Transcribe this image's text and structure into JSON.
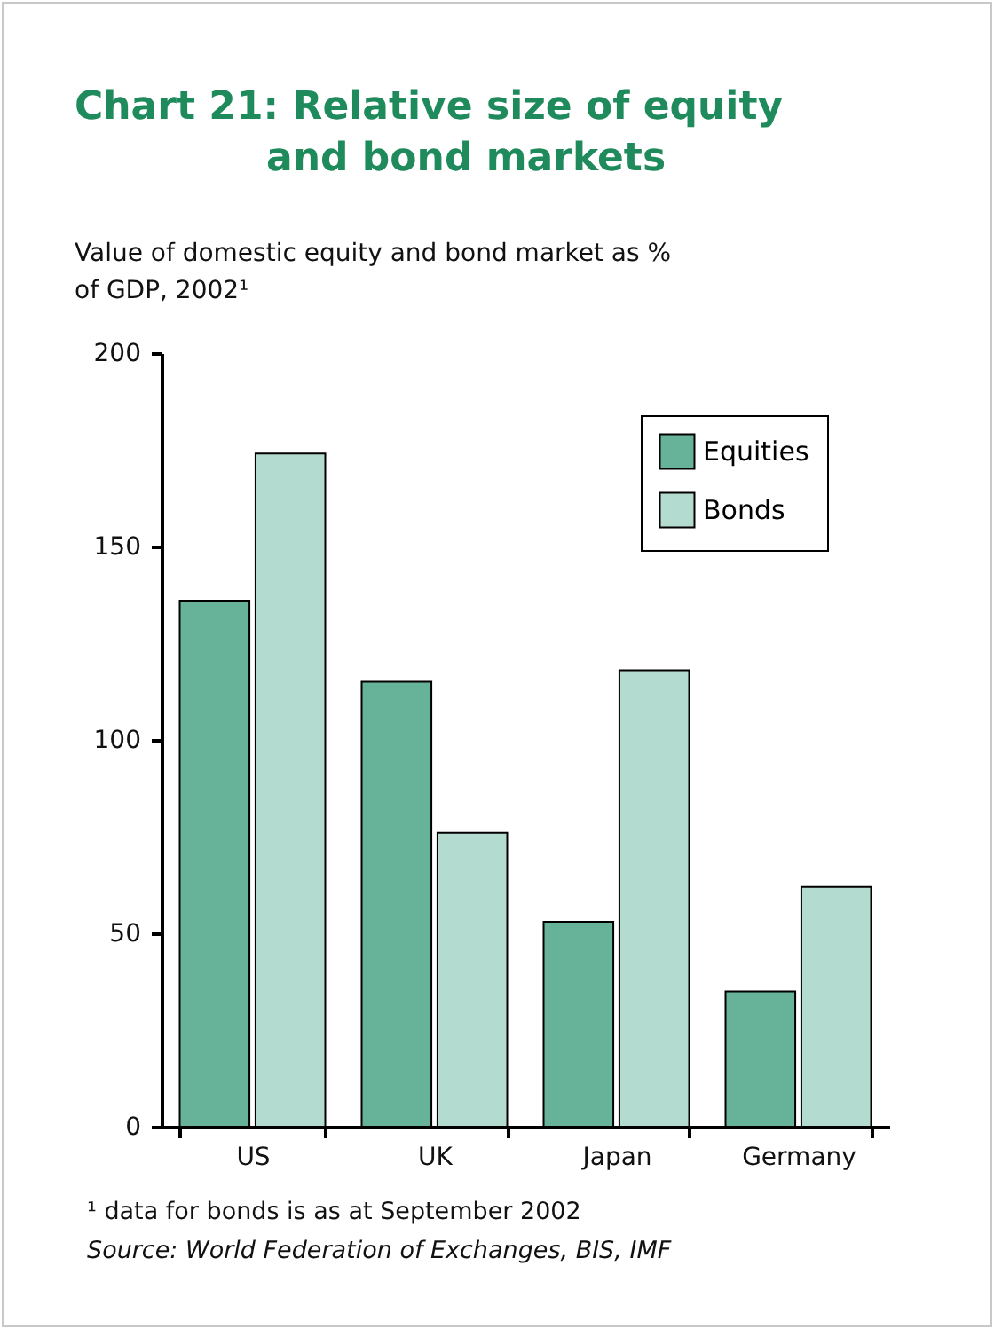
{
  "chart_data": {
    "type": "bar",
    "title": "Chart 21: Relative size of equity and bond markets",
    "ylabel": "Value of domestic equity and bond market as % of GDP, 2002¹",
    "categories": [
      "US",
      "UK",
      "Japan",
      "Germany"
    ],
    "series": [
      {
        "name": "Equities",
        "color": "#66b39a",
        "values": [
          136,
          115,
          53,
          35
        ]
      },
      {
        "name": "Bonds",
        "color": "#b4dbcf",
        "values": [
          174,
          76,
          118,
          62
        ]
      }
    ],
    "ylim": [
      0,
      200
    ],
    "yticks": [
      0,
      50,
      100,
      150,
      200
    ],
    "grid": false,
    "legend": "top right",
    "annotations": [
      "¹ data for bonds is as at September 2002",
      "Source: World Federation of Exchanges, BIS, IMF"
    ]
  }
}
